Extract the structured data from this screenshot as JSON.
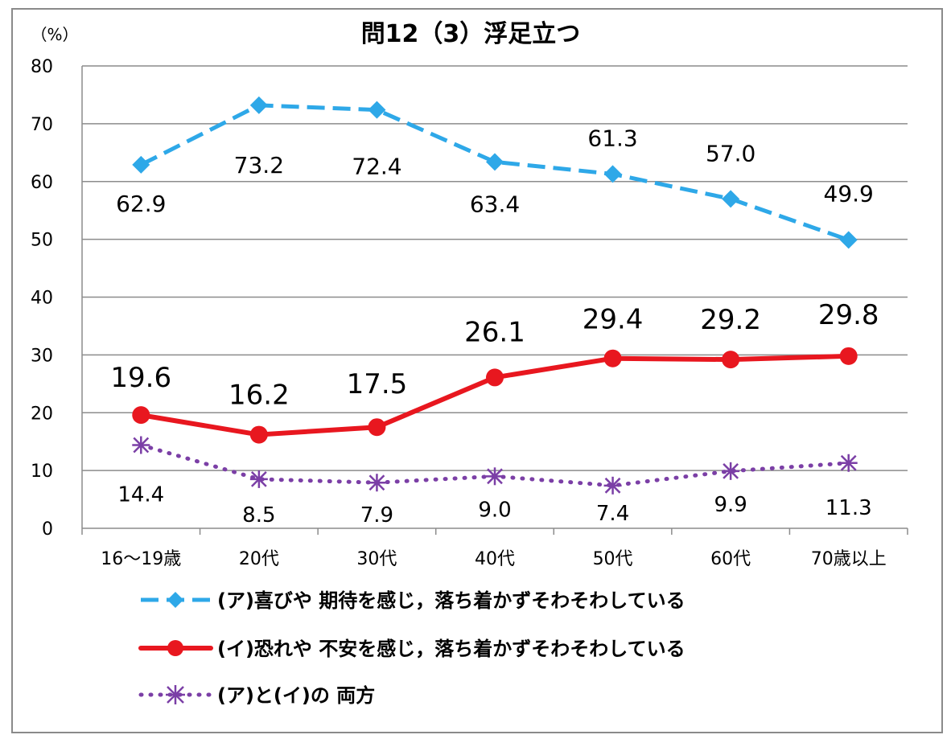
{
  "chart_data": {
    "type": "line",
    "title": "問12（3）浮足立つ",
    "ylabel": "（%）",
    "xlabel": "",
    "ylim": [
      0,
      80
    ],
    "yticks": [
      0,
      10,
      20,
      30,
      40,
      50,
      60,
      70,
      80
    ],
    "grid": true,
    "legend_position": "bottom",
    "categories": [
      "16～19歳",
      "20代",
      "30代",
      "40代",
      "50代",
      "60代",
      "70歳以上"
    ],
    "series": [
      {
        "name": "(ア)喜びや 期待を感じ，落ち着かずそわそわしている",
        "values": [
          62.9,
          73.2,
          72.4,
          63.4,
          61.3,
          57.0,
          49.9
        ],
        "labels": [
          "62.9",
          "73.2",
          "72.4",
          "63.4",
          "61.3",
          "57.0",
          "49.9"
        ],
        "color": "#2ea8e8",
        "style": "dashed",
        "marker": "diamond"
      },
      {
        "name": "(イ)恐れや 不安を感じ，落ち着かずそわそわしている",
        "values": [
          19.6,
          16.2,
          17.5,
          26.1,
          29.4,
          29.2,
          29.8
        ],
        "labels": [
          "19.6",
          "16.2",
          "17.5",
          "26.1",
          "29.4",
          "29.2",
          "29.8"
        ],
        "color": "#e8171f",
        "style": "solid",
        "marker": "circle"
      },
      {
        "name": "(ア)と(イ)の 両方",
        "values": [
          14.4,
          8.5,
          7.9,
          9.0,
          7.4,
          9.9,
          11.3
        ],
        "labels": [
          "14.4",
          "8.5",
          "7.9",
          "9.0",
          "7.4",
          "9.9",
          "11.3"
        ],
        "color": "#7b3fa6",
        "style": "dotted",
        "marker": "asterisk"
      }
    ]
  }
}
